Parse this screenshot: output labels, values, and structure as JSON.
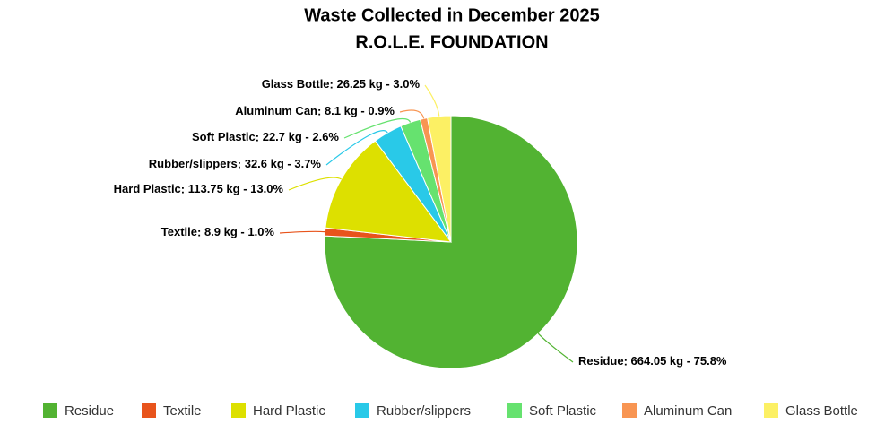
{
  "chart_data": {
    "type": "pie",
    "title": "Waste Collected in December 2025",
    "subtitle": "R.O.L.E. FOUNDATION",
    "categories": [
      "Residue",
      "Textile",
      "Hard Plastic",
      "Rubber/slippers",
      "Soft Plastic",
      "Aluminum Can",
      "Glass Bottle"
    ],
    "values": [
      664.05,
      8.9,
      113.75,
      32.6,
      22.7,
      8.1,
      26.25
    ],
    "value_labels": [
      "664.05 kg - 75.8%",
      "8.9 kg - 1.0%",
      "113.75 kg - 13.0%",
      "32.6 kg - 3.7%",
      "22.7 kg - 2.6%",
      "8.1 kg - 0.9%",
      "26.25 kg - 3.0%"
    ],
    "colors": [
      "#52b332",
      "#e8541c",
      "#dde000",
      "#29c9e8",
      "#66e26f",
      "#f89552",
      "#fcf064"
    ],
    "legend": "bottom"
  }
}
